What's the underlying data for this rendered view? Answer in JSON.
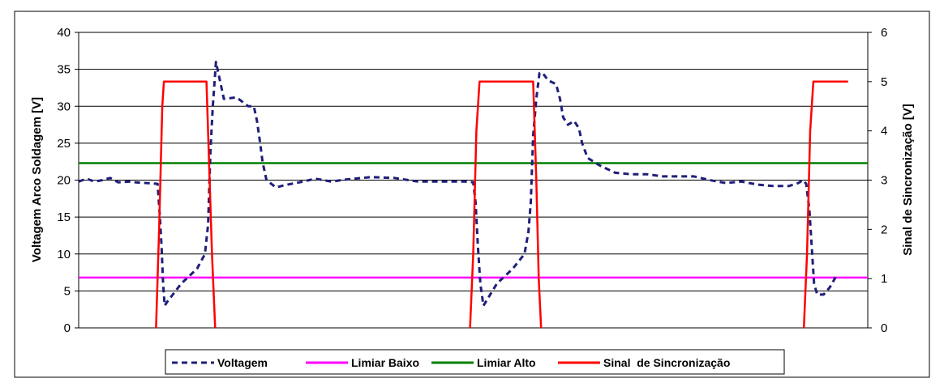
{
  "chart_data": {
    "type": "line",
    "title": "",
    "ylabel": "Voltagem Arco Soldagem [V]",
    "ylabel_right": "Sinal de Sincronização [V]",
    "xlabel": "",
    "ylim": [
      0,
      40
    ],
    "ylim_right": [
      0,
      6
    ],
    "yticks": [
      "0",
      "5",
      "10",
      "15",
      "20",
      "25",
      "30",
      "35",
      "40"
    ],
    "yticks_right": [
      "0",
      "1",
      "2",
      "3",
      "4",
      "5",
      "6"
    ],
    "xlim": [
      0,
      1000
    ],
    "grid": true,
    "legend_position": "bottom",
    "series": [
      {
        "name": "Voltagem",
        "axis": "left",
        "style": "dashed",
        "color": "#1f1f7a",
        "points": [
          [
            0,
            19.8
          ],
          [
            10,
            20.2
          ],
          [
            20,
            19.8
          ],
          [
            30,
            20.0
          ],
          [
            40,
            20.3
          ],
          [
            50,
            19.7
          ],
          [
            65,
            19.8
          ],
          [
            72,
            19.7
          ],
          [
            100,
            19.5
          ],
          [
            103,
            15
          ],
          [
            105,
            11
          ],
          [
            107,
            6
          ],
          [
            109,
            3
          ],
          [
            112,
            3.5
          ],
          [
            130,
            6
          ],
          [
            150,
            8
          ],
          [
            160,
            10
          ],
          [
            164,
            14
          ],
          [
            167,
            24
          ],
          [
            170,
            30
          ],
          [
            174,
            36
          ],
          [
            178,
            34
          ],
          [
            184,
            31
          ],
          [
            200,
            31.2
          ],
          [
            215,
            30
          ],
          [
            222,
            30
          ],
          [
            226,
            28
          ],
          [
            230,
            25
          ],
          [
            233,
            22.5
          ],
          [
            238,
            20
          ],
          [
            250,
            19
          ],
          [
            260,
            19.3
          ],
          [
            280,
            19.7
          ],
          [
            300,
            20.2
          ],
          [
            320,
            19.8
          ],
          [
            340,
            20.1
          ],
          [
            370,
            20.4
          ],
          [
            400,
            20.3
          ],
          [
            430,
            19.8
          ],
          [
            460,
            19.8
          ],
          [
            490,
            19.8
          ],
          [
            500,
            19.7
          ],
          [
            503,
            17
          ],
          [
            506,
            11
          ],
          [
            509,
            6
          ],
          [
            513,
            3
          ],
          [
            530,
            6
          ],
          [
            550,
            8
          ],
          [
            565,
            10
          ],
          [
            570,
            13
          ],
          [
            573,
            17
          ],
          [
            576,
            26
          ],
          [
            580,
            31
          ],
          [
            584,
            34.5
          ],
          [
            588,
            34.5
          ],
          [
            595,
            33.5
          ],
          [
            605,
            33
          ],
          [
            610,
            31
          ],
          [
            614,
            28.5
          ],
          [
            620,
            27.5
          ],
          [
            628,
            28
          ],
          [
            634,
            27
          ],
          [
            638,
            25
          ],
          [
            645,
            23
          ],
          [
            660,
            22
          ],
          [
            680,
            21
          ],
          [
            700,
            20.8
          ],
          [
            720,
            20.8
          ],
          [
            740,
            20.5
          ],
          [
            760,
            20.5
          ],
          [
            780,
            20.5
          ],
          [
            800,
            20.0
          ],
          [
            820,
            19.6
          ],
          [
            840,
            19.8
          ],
          [
            860,
            19.4
          ],
          [
            880,
            19.2
          ],
          [
            900,
            19.2
          ],
          [
            912,
            19.6
          ],
          [
            918,
            20.0
          ],
          [
            922,
            19.5
          ],
          [
            926,
            16
          ],
          [
            929,
            11
          ],
          [
            932,
            6
          ],
          [
            936,
            4.5
          ],
          [
            944,
            4.5
          ],
          [
            952,
            5.5
          ],
          [
            960,
            7
          ]
        ]
      },
      {
        "name": "Limiar Baixo",
        "axis": "left",
        "style": "solid",
        "color": "#ff00ff",
        "points": [
          [
            0,
            6.8
          ],
          [
            1000,
            6.8
          ]
        ]
      },
      {
        "name": "Limiar Alto",
        "axis": "left",
        "style": "solid",
        "color": "#008000",
        "points": [
          [
            0,
            22.3
          ],
          [
            1000,
            22.3
          ]
        ]
      },
      {
        "name": "Sinal  de Sincronização",
        "axis": "right",
        "style": "solid",
        "color": "#ff0000",
        "points": [
          [
            98,
            0
          ],
          [
            102,
            2.0
          ],
          [
            106,
            4.5
          ],
          [
            108,
            5.0
          ],
          [
            162,
            5.0
          ],
          [
            165,
            3.5
          ],
          [
            169,
            1.5
          ],
          [
            173,
            0
          ],
          [
            null,
            null
          ],
          [
            496,
            0
          ],
          [
            500,
            1.5
          ],
          [
            504,
            4.0
          ],
          [
            508,
            5.0
          ],
          [
            576,
            5.0
          ],
          [
            580,
            3.0
          ],
          [
            583,
            1.0
          ],
          [
            586,
            0
          ],
          [
            null,
            null
          ],
          [
            919,
            0
          ],
          [
            923,
            1.5
          ],
          [
            927,
            4.0
          ],
          [
            931,
            5.0
          ],
          [
            975,
            5.0
          ]
        ]
      }
    ]
  }
}
